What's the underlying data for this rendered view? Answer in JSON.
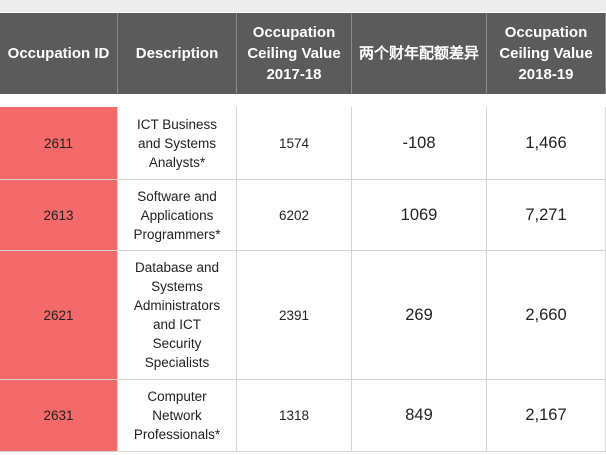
{
  "table": {
    "header": [
      [
        "Occupation ID"
      ],
      [
        "Description"
      ],
      [
        "Occupation",
        "Ceiling Value",
        "2017-18"
      ],
      [
        "两个财年配额差异"
      ],
      [
        "Occupation",
        "Ceiling Value",
        "2018-19"
      ]
    ],
    "rows": [
      [
        [
          "2611"
        ],
        [
          "ICT Business",
          "and Systems",
          "Analysts*"
        ],
        [
          "1574"
        ],
        [
          "-108"
        ],
        [
          "1,466"
        ]
      ],
      [
        [
          "2613"
        ],
        [
          "Software and",
          "Applications",
          "Programmers*"
        ],
        [
          "6202"
        ],
        [
          "1069"
        ],
        [
          "7,271"
        ]
      ],
      [
        [
          "2621"
        ],
        [
          "Database and",
          "Systems",
          "Administrators",
          "and ICT",
          "Security",
          "Specialists"
        ],
        [
          "2391"
        ],
        [
          "269"
        ],
        [
          "2,660"
        ]
      ],
      [
        [
          "2631"
        ],
        [
          "Computer",
          "Network",
          "Professionals*"
        ],
        [
          "1318"
        ],
        [
          "849"
        ],
        [
          "2,167"
        ]
      ]
    ]
  }
}
